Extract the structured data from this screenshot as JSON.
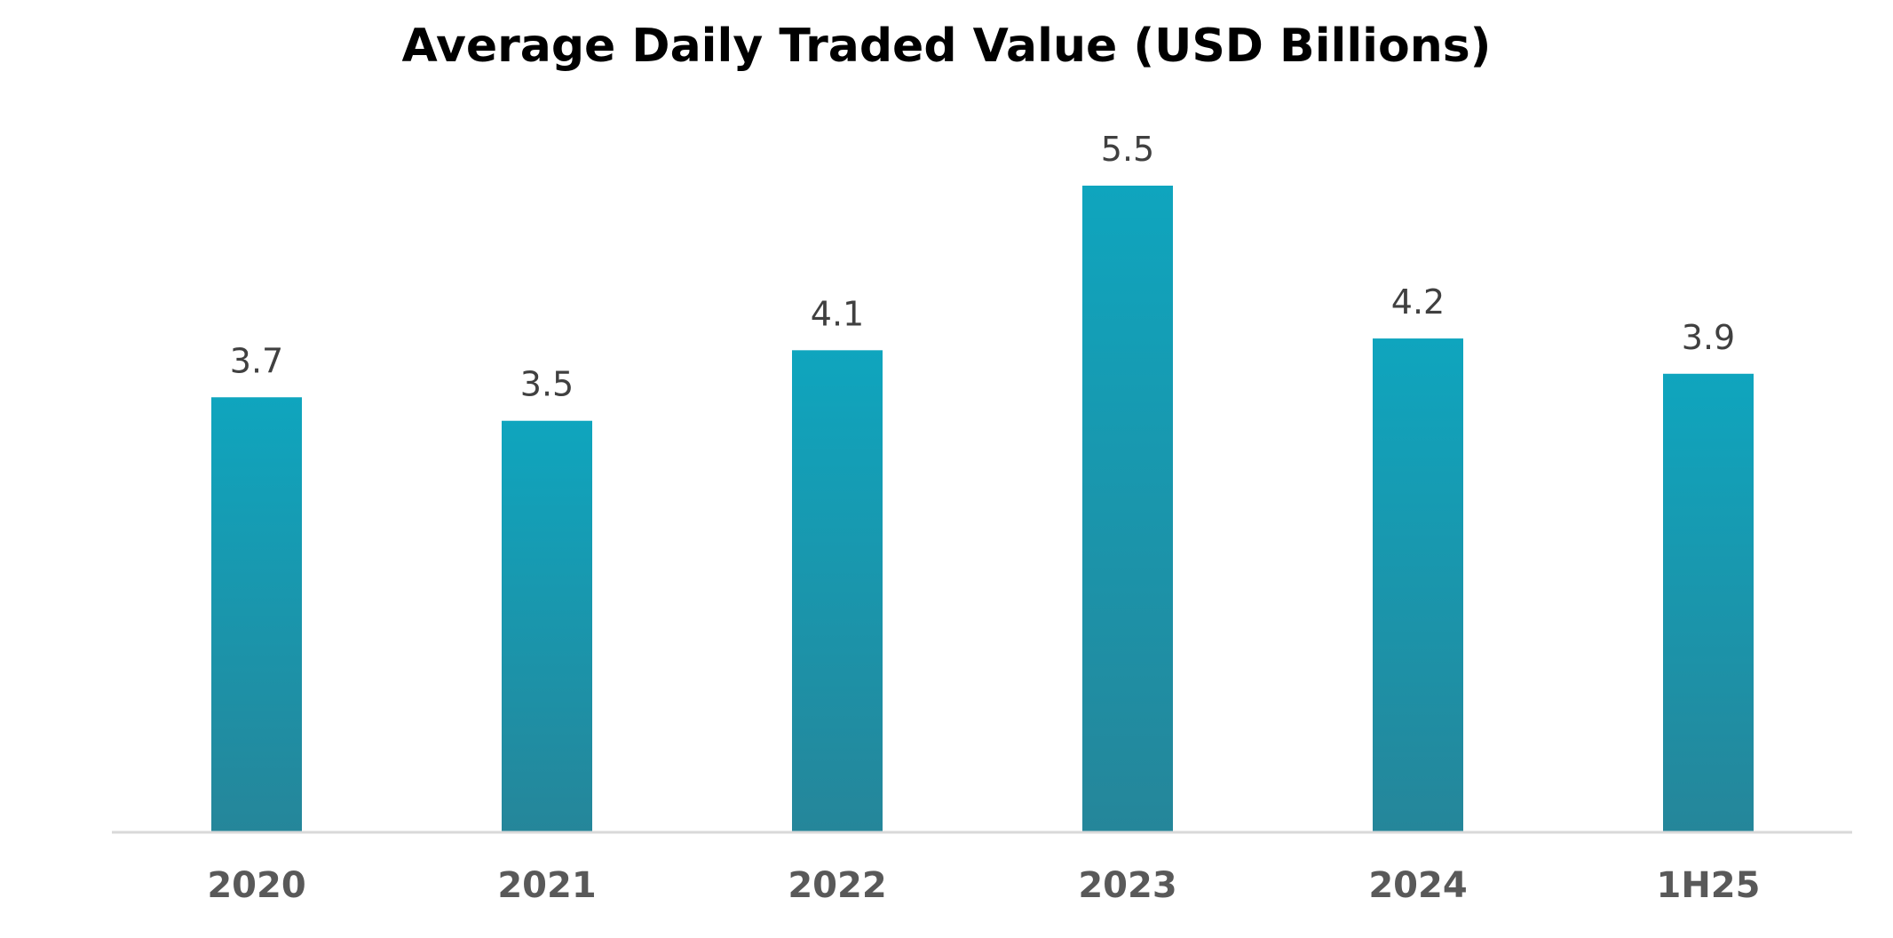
{
  "chart_data": {
    "type": "bar",
    "title": "Average Daily Traded Value (USD Billions)",
    "categories": [
      "2020",
      "2021",
      "2022",
      "2023",
      "2024",
      "1H25"
    ],
    "values": [
      3.7,
      3.5,
      4.1,
      5.5,
      4.2,
      3.9
    ],
    "value_labels": [
      "3.7",
      "3.5",
      "4.1",
      "5.5",
      "4.2",
      "3.9"
    ],
    "ylim": [
      0,
      5.5
    ],
    "grid": false,
    "legend": "none",
    "colors": {
      "bar_top": "#0fa5be",
      "bar_bottom": "#25869a",
      "baseline": "#d9d9d9"
    }
  }
}
